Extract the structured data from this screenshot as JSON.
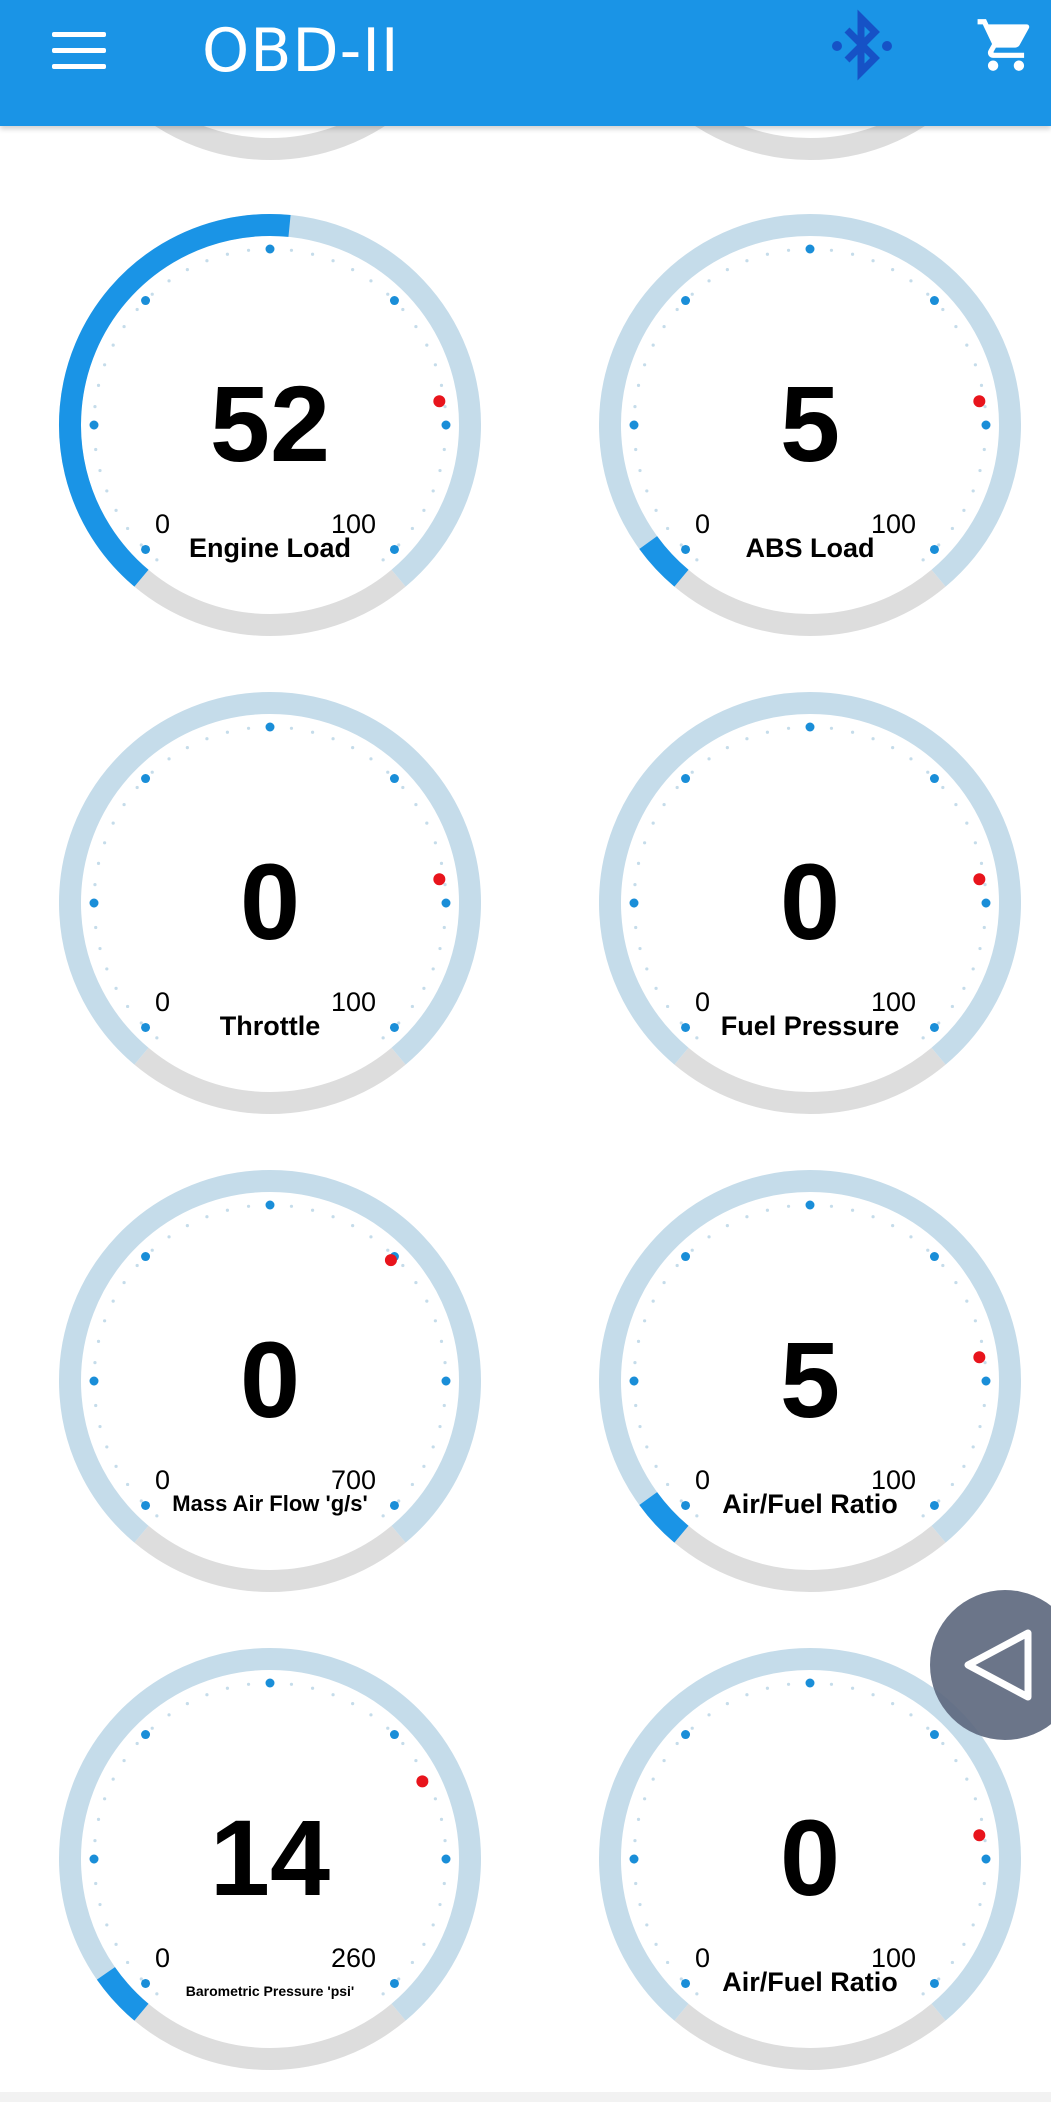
{
  "app": {
    "title": "OBD-II",
    "accent_color": "#1a94e6"
  },
  "icons": {
    "menu": "hamburger-menu-icon",
    "bluetooth": "bluetooth-icon",
    "cart": "shopping-cart-icon",
    "back": "triangle-back-icon"
  },
  "gauges": [
    {
      "label": "Engine Load",
      "value": "52",
      "min": "0",
      "max": "100",
      "fraction": 0.52
    },
    {
      "label": "ABS Load",
      "value": "5",
      "min": "0",
      "max": "100",
      "fraction": 0.05
    },
    {
      "label": "Throttle",
      "value": "0",
      "min": "0",
      "max": "100",
      "fraction": 0
    },
    {
      "label": "Fuel Pressure",
      "value": "0",
      "min": "0",
      "max": "100",
      "fraction": 0
    },
    {
      "label": "Mass Air Flow 'g/s'",
      "value": "0",
      "min": "0",
      "max": "700",
      "fraction": 0
    },
    {
      "label": "Air/Fuel Ratio",
      "value": "5",
      "min": "0",
      "max": "100",
      "fraction": 0.05
    },
    {
      "label": "Barometric Pressure 'psi'",
      "value": "14",
      "min": "0",
      "max": "260",
      "fraction": 0.054
    },
    {
      "label": "Air/Fuel Ratio",
      "value": "0",
      "min": "0",
      "max": "100",
      "fraction": 0
    }
  ],
  "colors": {
    "track": "#c5dcea",
    "track_gray": "#dddddd",
    "fill": "#1a94e6",
    "tick": "#1a8ed8",
    "red_marker": "#e8141c"
  }
}
